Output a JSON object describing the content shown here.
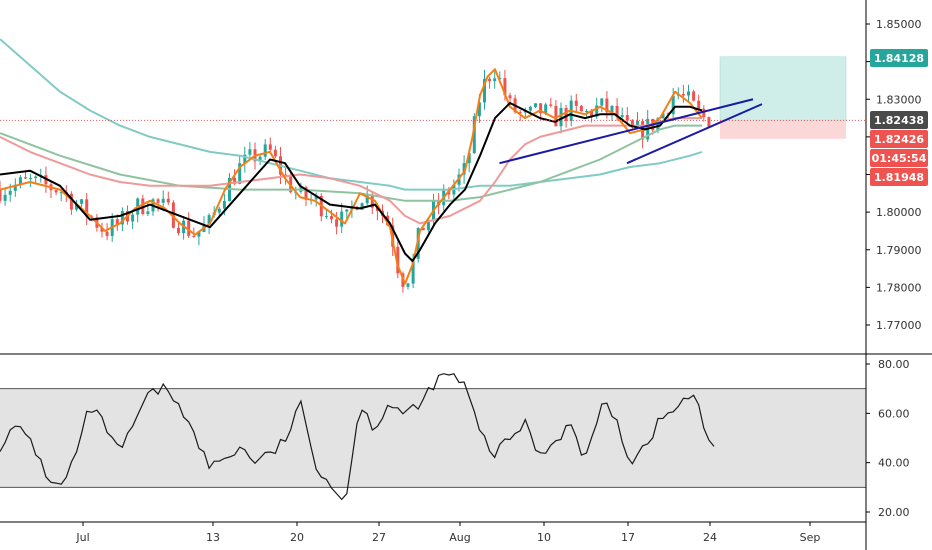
{
  "colors": {
    "up": "#26a69a",
    "down": "#ef5350",
    "ema_fast": "#f57f17",
    "ema_mid": "#000000",
    "ma_red": "#ef9a9a",
    "ma_green": "#8fc3a0",
    "ma_cyan": "#80cbc4",
    "trendline": "#1a1aa6",
    "rsi_line": "#1a1a1a",
    "rsi_band": "#e3e3e3",
    "profit_zone": "#cfeee9",
    "loss_zone": "#fbd7d7",
    "tag_green": "#26a69a",
    "tag_grey": "#4a4a4a",
    "tag_red": "#ef5350",
    "grid": "#000000"
  },
  "chart_data": [
    {
      "type": "line",
      "name": "price",
      "ylim": [
        1.766,
        1.856
      ],
      "y_ticks": [
        "1.85000",
        "1.84000",
        "1.83000",
        "1.82000",
        "1.81000",
        "1.80000",
        "1.79000",
        "1.78000",
        "1.77000"
      ],
      "x_ticks": [
        "Jul",
        "13",
        "20",
        "27",
        "Aug",
        "10",
        "17",
        "24",
        "Sep"
      ],
      "series": [
        {
          "style": "ema_fast",
          "values": [
            [
              0,
              1.806
            ],
            [
              2,
              1.808
            ],
            [
              4,
              1.806
            ],
            [
              6,
              1.799
            ],
            [
              7,
              1.795
            ],
            [
              8,
              1.797
            ],
            [
              9,
              1.801
            ],
            [
              10,
              1.803
            ],
            [
              11,
              1.801
            ],
            [
              12,
              1.797
            ],
            [
              13,
              1.794
            ],
            [
              14,
              1.797
            ],
            [
              15,
              1.806
            ],
            [
              16,
              1.812
            ],
            [
              17,
              1.815
            ],
            [
              18,
              1.816
            ],
            [
              19,
              1.809
            ],
            [
              20,
              1.804
            ],
            [
              21,
              1.803
            ],
            [
              22,
              1.8
            ],
            [
              23,
              1.797
            ],
            [
              24,
              1.805
            ],
            [
              25,
              1.803
            ],
            [
              26,
              1.796
            ],
            [
              26.5,
              1.786
            ],
            [
              27,
              1.781
            ],
            [
              27.5,
              1.786
            ],
            [
              28,
              1.795
            ],
            [
              29,
              1.801
            ],
            [
              30,
              1.806
            ],
            [
              31,
              1.811
            ],
            [
              31.5,
              1.82
            ],
            [
              32,
              1.831
            ],
            [
              32.5,
              1.836
            ],
            [
              33,
              1.838
            ],
            [
              33.5,
              1.833
            ],
            [
              34,
              1.828
            ],
            [
              35,
              1.825
            ],
            [
              36,
              1.827
            ],
            [
              37,
              1.825
            ],
            [
              38,
              1.827
            ],
            [
              39,
              1.826
            ],
            [
              40,
              1.828
            ],
            [
              41,
              1.826
            ],
            [
              42,
              1.821
            ],
            [
              43,
              1.822
            ],
            [
              44,
              1.825
            ],
            [
              45,
              1.832
            ],
            [
              46,
              1.829
            ],
            [
              46.8,
              1.825
            ]
          ]
        },
        {
          "style": "ema_mid",
          "values": [
            [
              0,
              1.81
            ],
            [
              2,
              1.811
            ],
            [
              4,
              1.807
            ],
            [
              6,
              1.798
            ],
            [
              8,
              1.799
            ],
            [
              10,
              1.802
            ],
            [
              12,
              1.799
            ],
            [
              14,
              1.796
            ],
            [
              16,
              1.805
            ],
            [
              18,
              1.814
            ],
            [
              19,
              1.813
            ],
            [
              20,
              1.807
            ],
            [
              22,
              1.802
            ],
            [
              24,
              1.801
            ],
            [
              25,
              1.802
            ],
            [
              26,
              1.797
            ],
            [
              27,
              1.789
            ],
            [
              27.5,
              1.787
            ],
            [
              28,
              1.79
            ],
            [
              29,
              1.797
            ],
            [
              30,
              1.802
            ],
            [
              31,
              1.806
            ],
            [
              32,
              1.815
            ],
            [
              33,
              1.825
            ],
            [
              34,
              1.829
            ],
            [
              35,
              1.827
            ],
            [
              36,
              1.825
            ],
            [
              37,
              1.824
            ],
            [
              38,
              1.826
            ],
            [
              39,
              1.825
            ],
            [
              40,
              1.826
            ],
            [
              41,
              1.826
            ],
            [
              42,
              1.823
            ],
            [
              43,
              1.822
            ],
            [
              44,
              1.823
            ],
            [
              45,
              1.828
            ],
            [
              46,
              1.828
            ],
            [
              46.8,
              1.827
            ]
          ]
        },
        {
          "style": "ma_red",
          "values": [
            [
              0,
              1.82
            ],
            [
              2,
              1.816
            ],
            [
              4,
              1.813
            ],
            [
              6,
              1.81
            ],
            [
              8,
              1.808
            ],
            [
              10,
              1.807
            ],
            [
              12,
              1.807
            ],
            [
              14,
              1.807
            ],
            [
              16,
              1.808
            ],
            [
              18,
              1.809
            ],
            [
              20,
              1.81
            ],
            [
              22,
              1.809
            ],
            [
              24,
              1.807
            ],
            [
              26,
              1.803
            ],
            [
              27,
              1.799
            ],
            [
              28,
              1.797
            ],
            [
              30,
              1.799
            ],
            [
              32,
              1.803
            ],
            [
              33,
              1.808
            ],
            [
              34,
              1.814
            ],
            [
              35,
              1.818
            ],
            [
              36,
              1.82
            ],
            [
              37,
              1.821
            ],
            [
              38,
              1.822
            ],
            [
              39,
              1.823
            ],
            [
              40,
              1.823
            ],
            [
              41,
              1.823
            ],
            [
              42,
              1.823
            ],
            [
              43,
              1.823
            ],
            [
              44,
              1.824
            ],
            [
              45,
              1.825
            ],
            [
              46,
              1.825
            ],
            [
              46.8,
              1.825
            ]
          ]
        },
        {
          "style": "ma_green",
          "values": [
            [
              0,
              1.821
            ],
            [
              4,
              1.815
            ],
            [
              8,
              1.81
            ],
            [
              12,
              1.807
            ],
            [
              16,
              1.806
            ],
            [
              20,
              1.806
            ],
            [
              24,
              1.805
            ],
            [
              27,
              1.803
            ],
            [
              30,
              1.803
            ],
            [
              32,
              1.804
            ],
            [
              34,
              1.806
            ],
            [
              36,
              1.808
            ],
            [
              38,
              1.811
            ],
            [
              40,
              1.814
            ],
            [
              42,
              1.818
            ],
            [
              43,
              1.82
            ],
            [
              44,
              1.822
            ],
            [
              45,
              1.823
            ],
            [
              46,
              1.823
            ],
            [
              46.8,
              1.823
            ]
          ]
        },
        {
          "style": "ma_cyan",
          "values": [
            [
              0,
              1.846
            ],
            [
              2,
              1.839
            ],
            [
              4,
              1.832
            ],
            [
              6,
              1.827
            ],
            [
              8,
              1.823
            ],
            [
              10,
              1.82
            ],
            [
              12,
              1.818
            ],
            [
              14,
              1.816
            ],
            [
              16,
              1.815
            ],
            [
              18,
              1.813
            ],
            [
              20,
              1.811
            ],
            [
              22,
              1.809
            ],
            [
              24,
              1.808
            ],
            [
              26,
              1.807
            ],
            [
              27,
              1.806
            ],
            [
              28,
              1.806
            ],
            [
              30,
              1.806
            ],
            [
              32,
              1.807
            ],
            [
              34,
              1.807
            ],
            [
              36,
              1.808
            ],
            [
              38,
              1.809
            ],
            [
              40,
              1.81
            ],
            [
              42,
              1.812
            ],
            [
              44,
              1.813
            ],
            [
              46,
              1.815
            ],
            [
              46.8,
              1.816
            ]
          ]
        }
      ],
      "trendlines": [
        {
          "from": [
            33.3,
            1.813
          ],
          "to": [
            50.2,
            1.83
          ]
        },
        {
          "from": [
            41.8,
            1.813
          ],
          "to": [
            50.8,
            1.8287
          ]
        }
      ],
      "current_price_line": 1.82438,
      "position": {
        "start_x": 48.0,
        "end_x": 56.4,
        "entry": 1.82438,
        "target": 1.84128,
        "stop": 1.81948
      },
      "price_tags": [
        {
          "label": "1.84128",
          "value": 1.84128,
          "color": "tag_green"
        },
        {
          "label": "1.82438",
          "value": 1.82438,
          "color": "tag_grey"
        },
        {
          "label": "1.82426",
          "value": 1.82426,
          "color": "tag_red"
        },
        {
          "label": "01:45:54",
          "value": 1.817,
          "color": "tag_red"
        },
        {
          "label": "1.81948",
          "value": 1.81948,
          "color": "tag_red"
        }
      ]
    },
    {
      "type": "line",
      "name": "rsi",
      "ylim": [
        16,
        82
      ],
      "y_ticks": [
        "80.00",
        "60.00",
        "40.00",
        "20.00"
      ],
      "band": [
        30,
        70
      ],
      "values": [
        [
          0,
          47
        ],
        [
          1,
          54
        ],
        [
          2,
          50
        ],
        [
          3,
          36
        ],
        [
          4,
          29
        ],
        [
          5,
          42
        ],
        [
          6,
          63
        ],
        [
          7,
          55
        ],
        [
          8,
          43
        ],
        [
          9,
          57
        ],
        [
          10,
          68
        ],
        [
          11,
          70
        ],
        [
          12,
          64
        ],
        [
          13,
          50
        ],
        [
          14,
          38
        ],
        [
          15,
          42
        ],
        [
          16,
          46
        ],
        [
          17,
          41
        ],
        [
          18,
          43
        ],
        [
          19,
          49
        ],
        [
          20,
          64
        ],
        [
          21,
          40
        ],
        [
          22,
          32
        ],
        [
          23,
          23
        ],
        [
          23.5,
          45
        ],
        [
          24,
          63
        ],
        [
          25,
          54
        ],
        [
          26,
          65
        ],
        [
          27,
          59
        ],
        [
          28,
          63
        ],
        [
          29,
          73
        ],
        [
          30,
          76
        ],
        [
          31,
          71
        ],
        [
          32,
          52
        ],
        [
          33,
          43
        ],
        [
          34,
          50
        ],
        [
          35,
          56
        ],
        [
          36,
          43
        ],
        [
          37,
          49
        ],
        [
          38,
          56
        ],
        [
          39,
          40
        ],
        [
          40,
          63
        ],
        [
          41,
          60
        ],
        [
          42,
          40
        ],
        [
          43,
          47
        ],
        [
          44,
          57
        ],
        [
          45,
          62
        ],
        [
          46,
          67
        ],
        [
          46.5,
          64
        ],
        [
          47,
          53
        ],
        [
          47.8,
          43
        ]
      ]
    }
  ]
}
